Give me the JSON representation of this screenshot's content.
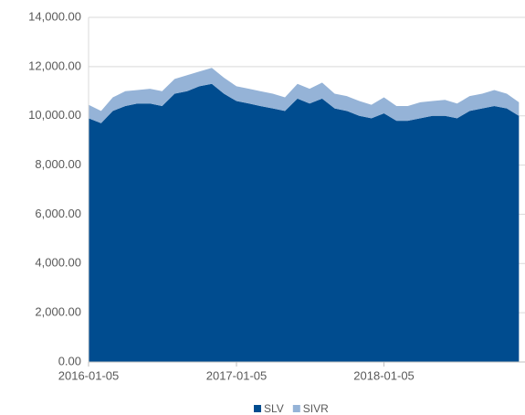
{
  "chart_data": {
    "type": "stacked_area",
    "x": [
      "2016-01-05",
      "2016-02-05",
      "2016-03-05",
      "2016-04-05",
      "2016-05-05",
      "2016-06-05",
      "2016-07-05",
      "2016-08-05",
      "2016-09-05",
      "2016-10-05",
      "2016-11-05",
      "2016-12-05",
      "2017-01-05",
      "2017-02-05",
      "2017-03-05",
      "2017-04-05",
      "2017-05-05",
      "2017-06-05",
      "2017-07-05",
      "2017-08-05",
      "2017-09-05",
      "2017-10-05",
      "2017-11-05",
      "2017-12-05",
      "2018-01-05",
      "2018-02-05",
      "2018-03-05",
      "2018-04-05",
      "2018-05-05",
      "2018-06-05",
      "2018-07-05",
      "2018-08-05",
      "2018-09-05",
      "2018-10-05",
      "2018-11-05",
      "2018-12-05"
    ],
    "series": [
      {
        "name": "SLV",
        "color": "#004c8f",
        "values": [
          9900,
          9700,
          10200,
          10400,
          10500,
          10500,
          10400,
          10900,
          11000,
          11200,
          11300,
          10900,
          10600,
          10500,
          10400,
          10300,
          10200,
          10700,
          10500,
          10700,
          10300,
          10200,
          10000,
          9900,
          10100,
          9800,
          9800,
          9900,
          10000,
          10000,
          9900,
          10200,
          10300,
          10400,
          10300,
          10000
        ]
      },
      {
        "name": "SIVR",
        "color": "#95b3d7",
        "values": [
          550,
          500,
          550,
          600,
          550,
          600,
          600,
          600,
          650,
          600,
          650,
          650,
          600,
          600,
          600,
          600,
          550,
          600,
          600,
          650,
          600,
          600,
          600,
          550,
          650,
          600,
          600,
          650,
          600,
          650,
          600,
          600,
          600,
          650,
          600,
          550
        ]
      }
    ],
    "xlim": [
      "2016-01-05",
      "2018-12-20"
    ],
    "xticks": [
      "2016-01-05",
      "2017-01-05",
      "2018-01-05"
    ],
    "ylim": [
      0,
      14000
    ],
    "yticks": [
      {
        "value": 0,
        "label": "0.00"
      },
      {
        "value": 2000,
        "label": "2,000.00"
      },
      {
        "value": 4000,
        "label": "4,000.00"
      },
      {
        "value": 6000,
        "label": "6,000.00"
      },
      {
        "value": 8000,
        "label": "8,000.00"
      },
      {
        "value": 10000,
        "label": "10,000.00"
      },
      {
        "value": 12000,
        "label": "12,000.00"
      },
      {
        "value": 14000,
        "label": "14,000.00"
      }
    ],
    "grid": true,
    "legend": "bottom"
  }
}
